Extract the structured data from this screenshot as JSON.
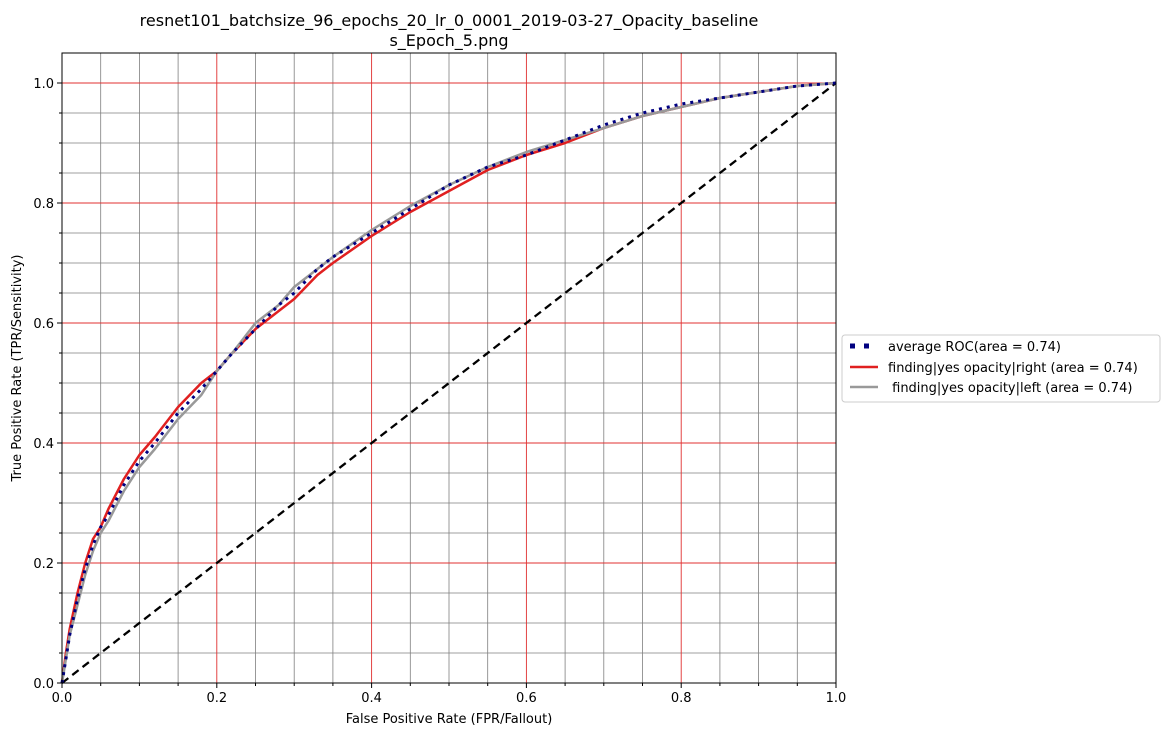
{
  "chart_data": {
    "type": "line",
    "title": [
      "resnet101_batchsize_96_epochs_20_lr_0_0001_2019-03-27_Opacity_baseline",
      "s_Epoch_5.png"
    ],
    "xlabel": "False Positive Rate (FPR/Fallout)",
    "ylabel": "True Positive Rate (TPR/Sensitivity)",
    "xlim": [
      0.0,
      1.0
    ],
    "ylim": [
      0.0,
      1.05
    ],
    "xticks": [
      "0.0",
      "0.2",
      "0.4",
      "0.6",
      "0.8",
      "1.0"
    ],
    "yticks": [
      "0.0",
      "0.2",
      "0.4",
      "0.6",
      "0.8",
      "1.0"
    ],
    "grid": {
      "major": true,
      "minor": true,
      "major_color": "#e03030",
      "minor_color": "#7f7f7f"
    },
    "legend_position": "center-right-outside",
    "series": [
      {
        "name": "average ROC(area = 0.74)",
        "color": "#000080",
        "style": "dotted",
        "x": [
          0,
          0.005,
          0.01,
          0.02,
          0.03,
          0.04,
          0.05,
          0.06,
          0.08,
          0.1,
          0.12,
          0.15,
          0.18,
          0.2,
          0.22,
          0.25,
          0.28,
          0.3,
          0.33,
          0.35,
          0.4,
          0.45,
          0.5,
          0.55,
          0.6,
          0.65,
          0.7,
          0.75,
          0.8,
          0.85,
          0.9,
          0.95,
          1.0
        ],
        "y": [
          0,
          0.04,
          0.08,
          0.14,
          0.19,
          0.23,
          0.26,
          0.28,
          0.33,
          0.37,
          0.4,
          0.45,
          0.49,
          0.52,
          0.55,
          0.59,
          0.63,
          0.65,
          0.69,
          0.71,
          0.75,
          0.79,
          0.83,
          0.86,
          0.88,
          0.905,
          0.93,
          0.95,
          0.965,
          0.975,
          0.985,
          0.995,
          1.0
        ]
      },
      {
        "name": "finding|yes opacity|right (area = 0.74)",
        "color": "#e02020",
        "style": "solid",
        "x": [
          0,
          0.005,
          0.01,
          0.02,
          0.03,
          0.04,
          0.05,
          0.06,
          0.08,
          0.1,
          0.12,
          0.15,
          0.18,
          0.2,
          0.22,
          0.25,
          0.28,
          0.3,
          0.33,
          0.35,
          0.4,
          0.45,
          0.5,
          0.55,
          0.6,
          0.65,
          0.7,
          0.75,
          0.8,
          0.85,
          0.9,
          0.95,
          1.0
        ],
        "y": [
          0,
          0.05,
          0.09,
          0.15,
          0.2,
          0.24,
          0.26,
          0.29,
          0.34,
          0.38,
          0.41,
          0.46,
          0.5,
          0.52,
          0.55,
          0.59,
          0.62,
          0.64,
          0.68,
          0.7,
          0.745,
          0.785,
          0.82,
          0.855,
          0.88,
          0.9,
          0.925,
          0.945,
          0.96,
          0.975,
          0.985,
          0.995,
          1.0
        ]
      },
      {
        "name": " finding|yes opacity|left (area = 0.74)",
        "color": "#999999",
        "style": "solid",
        "x": [
          0,
          0.005,
          0.01,
          0.02,
          0.03,
          0.04,
          0.05,
          0.06,
          0.08,
          0.1,
          0.12,
          0.15,
          0.18,
          0.2,
          0.22,
          0.25,
          0.28,
          0.3,
          0.33,
          0.35,
          0.4,
          0.45,
          0.5,
          0.55,
          0.6,
          0.65,
          0.7,
          0.75,
          0.8,
          0.85,
          0.9,
          0.95,
          1.0
        ],
        "y": [
          0,
          0.04,
          0.08,
          0.13,
          0.18,
          0.22,
          0.25,
          0.27,
          0.32,
          0.36,
          0.39,
          0.44,
          0.48,
          0.52,
          0.55,
          0.6,
          0.63,
          0.66,
          0.69,
          0.71,
          0.755,
          0.795,
          0.83,
          0.86,
          0.885,
          0.905,
          0.925,
          0.945,
          0.96,
          0.975,
          0.985,
          0.995,
          1.0
        ]
      },
      {
        "name": "",
        "color": "#000000",
        "style": "dashed",
        "x": [
          0,
          1
        ],
        "y": [
          0,
          1
        ]
      }
    ]
  }
}
